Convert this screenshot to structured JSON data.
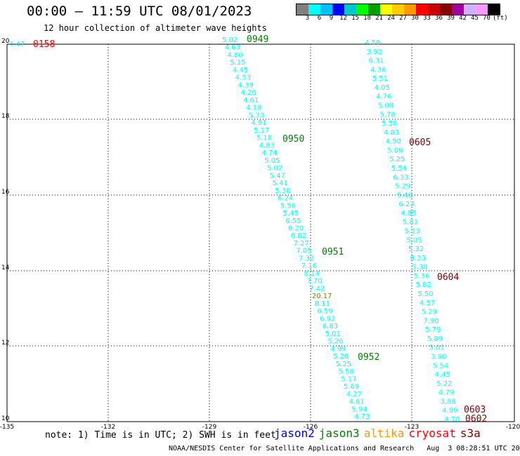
{
  "title": "00:00 – 11:59 UTC 08/01/2023",
  "subtitle": "12 hour collection of altimeter wave heights",
  "legend": {
    "colors": [
      "#808080",
      "#00ffff",
      "#00bfff",
      "#0000ff",
      "#00c8c8",
      "#00ff00",
      "#00a000",
      "#ffff00",
      "#ffcc00",
      "#ff9900",
      "#ff0000",
      "#cc0000",
      "#880000",
      "#a000a0",
      "#d0b0ff",
      "#ff99ff",
      "#000000"
    ],
    "labels": [
      "3",
      "6",
      "9",
      "12",
      "15",
      "18",
      "21",
      "24",
      "27",
      "30",
      "33",
      "36",
      "39",
      "42",
      "45",
      "70",
      "(ft)"
    ]
  },
  "axes": {
    "lon_ticks": [
      "-135",
      "-132",
      "-129",
      "-126",
      "-123",
      "-120"
    ],
    "lat_ticks": [
      "20",
      "18",
      "16",
      "14",
      "12",
      "10"
    ]
  },
  "time_labels": [
    {
      "text": "0158",
      "color": "#ff0000"
    },
    {
      "text": "0949",
      "color": "#008000"
    },
    {
      "text": "0950",
      "color": "#008000"
    },
    {
      "text": "0951",
      "color": "#008000"
    },
    {
      "text": "0952",
      "color": "#008000"
    },
    {
      "text": "0605",
      "color": "#800000"
    },
    {
      "text": "0604",
      "color": "#800000"
    },
    {
      "text": "0603",
      "color": "#800000"
    },
    {
      "text": "0602",
      "color": "#800000"
    }
  ],
  "track_points": {
    "solo": [
      {
        "v": "4.47",
        "c": "#00ffff"
      }
    ],
    "jason3_track": [
      {
        "v": "5.02",
        "c": "#00ffff"
      },
      {
        "v": "4.63",
        "c": "#00ffff"
      },
      {
        "v": "4.80",
        "c": "#00ffff"
      },
      {
        "v": "5.15",
        "c": "#00ffff"
      },
      {
        "v": "4.45",
        "c": "#00ffff"
      },
      {
        "v": "4.53",
        "c": "#00ffff"
      },
      {
        "v": "4.39",
        "c": "#00ffff"
      },
      {
        "v": "4.26",
        "c": "#00ffff"
      },
      {
        "v": "4.61",
        "c": "#00ffff"
      },
      {
        "v": "4.18",
        "c": "#00ffff"
      },
      {
        "v": "5.33",
        "c": "#00ffff"
      },
      {
        "v": "4.91",
        "c": "#00ffff"
      },
      {
        "v": "5.17",
        "c": "#00ffff"
      },
      {
        "v": "5.18",
        "c": "#00ffff"
      },
      {
        "v": "4.83",
        "c": "#00ffff"
      },
      {
        "v": "4.74",
        "c": "#00ffff"
      },
      {
        "v": "5.05",
        "c": "#00ffff"
      },
      {
        "v": "5.02",
        "c": "#00ffff"
      },
      {
        "v": "5.47",
        "c": "#00ffff"
      },
      {
        "v": "5.41",
        "c": "#00ffff"
      },
      {
        "v": "5.38",
        "c": "#00ffff"
      },
      {
        "v": "6.24",
        "c": "#00ffff"
      },
      {
        "v": "5.56",
        "c": "#00ffff"
      },
      {
        "v": "5.45",
        "c": "#00ffff"
      },
      {
        "v": "6.55",
        "c": "#00ffff"
      },
      {
        "v": "6.20",
        "c": "#00ffff"
      },
      {
        "v": "6.82",
        "c": "#00ffff"
      },
      {
        "v": "7.27",
        "c": "#00ffff"
      },
      {
        "v": "7.05",
        "c": "#00ffff"
      },
      {
        "v": "7.32",
        "c": "#00ffff"
      },
      {
        "v": "7.16",
        "c": "#00ffff"
      },
      {
        "v": "8.14",
        "c": "#00ffff"
      },
      {
        "v": "7.70",
        "c": "#00ffff"
      },
      {
        "v": "7.42",
        "c": "#00ffff"
      },
      {
        "v": "20.17",
        "c": "#808000"
      },
      {
        "v": "8.11",
        "c": "#00ffff"
      },
      {
        "v": "6.59",
        "c": "#00ffff"
      },
      {
        "v": "6.92",
        "c": "#00ffff"
      },
      {
        "v": "6.83",
        "c": "#00ffff"
      },
      {
        "v": "5.01",
        "c": "#00ffff"
      },
      {
        "v": "5.26",
        "c": "#00ffff"
      },
      {
        "v": "4.99",
        "c": "#00ffff"
      },
      {
        "v": "5.26",
        "c": "#00ffff"
      },
      {
        "v": "5.25",
        "c": "#00ffff"
      },
      {
        "v": "5.58",
        "c": "#00ffff"
      },
      {
        "v": "5.17",
        "c": "#00ffff"
      },
      {
        "v": "5.69",
        "c": "#00ffff"
      },
      {
        "v": "4.27",
        "c": "#00ffff"
      },
      {
        "v": "4.61",
        "c": "#00ffff"
      },
      {
        "v": "5.94",
        "c": "#00ffff"
      },
      {
        "v": "4.73",
        "c": "#00ffff"
      }
    ],
    "cryosat_track": [
      {
        "v": "4.59",
        "c": "#00ffff"
      },
      {
        "v": "3.92",
        "c": "#00ffff"
      },
      {
        "v": "6.31",
        "c": "#00ffff"
      },
      {
        "v": "4.36",
        "c": "#00ffff"
      },
      {
        "v": "5.51",
        "c": "#00ffff"
      },
      {
        "v": "4.05",
        "c": "#00ffff"
      },
      {
        "v": "4.76",
        "c": "#00ffff"
      },
      {
        "v": "5.08",
        "c": "#00ffff"
      },
      {
        "v": "5.78",
        "c": "#00ffff"
      },
      {
        "v": "5.58",
        "c": "#00ffff"
      },
      {
        "v": "4.83",
        "c": "#00ffff"
      },
      {
        "v": "4.50",
        "c": "#00ffff"
      },
      {
        "v": "5.09",
        "c": "#00ffff"
      },
      {
        "v": "5.25",
        "c": "#00ffff"
      },
      {
        "v": "5.54",
        "c": "#00ffff"
      },
      {
        "v": "6.33",
        "c": "#00ffff"
      },
      {
        "v": "5.29",
        "c": "#00ffff"
      },
      {
        "v": "5.40",
        "c": "#00ffff"
      },
      {
        "v": "6.23",
        "c": "#00ffff"
      },
      {
        "v": "4.85",
        "c": "#00ffff"
      },
      {
        "v": "5.81",
        "c": "#00ffff"
      },
      {
        "v": "5.23",
        "c": "#00ffff"
      },
      {
        "v": "5.05",
        "c": "#00ffff"
      },
      {
        "v": "5.32",
        "c": "#00ffff"
      },
      {
        "v": "6.33",
        "c": "#00ffff"
      },
      {
        "v": "5.38",
        "c": "#00ffff"
      },
      {
        "v": "5.36",
        "c": "#00ffff"
      },
      {
        "v": "5.82",
        "c": "#00ffff"
      },
      {
        "v": "5.50",
        "c": "#00ffff"
      },
      {
        "v": "4.57",
        "c": "#00ffff"
      },
      {
        "v": "5.29",
        "c": "#00ffff"
      },
      {
        "v": "7.90",
        "c": "#00ffff"
      },
      {
        "v": "5.79",
        "c": "#00ffff"
      },
      {
        "v": "5.89",
        "c": "#00ffff"
      },
      {
        "v": "5.01",
        "c": "#00ffff"
      },
      {
        "v": "3.90",
        "c": "#00ffff"
      },
      {
        "v": "5.54",
        "c": "#00ffff"
      },
      {
        "v": "4.45",
        "c": "#00ffff"
      },
      {
        "v": "5.22",
        "c": "#00ffff"
      },
      {
        "v": "4.79",
        "c": "#00ffff"
      },
      {
        "v": "3.88",
        "c": "#00ffff"
      },
      {
        "v": "4.99",
        "c": "#00ffff"
      },
      {
        "v": "4.70",
        "c": "#00ffff"
      }
    ]
  },
  "note": "note: 1) Time is in UTC; 2) SWH is in feet",
  "satellites": [
    {
      "name": "jason2",
      "color": "#0000ff"
    },
    {
      "name": "jason3",
      "color": "#008000"
    },
    {
      "name": "altika",
      "color": "#ff9900"
    },
    {
      "name": "cryosat",
      "color": "#ff0000"
    },
    {
      "name": "s3a",
      "color": "#800000"
    }
  ],
  "credit": "NOAA/NESDIS Center for Satellite Applications and Research   Aug  3 08:28:51 UTC 2023"
}
